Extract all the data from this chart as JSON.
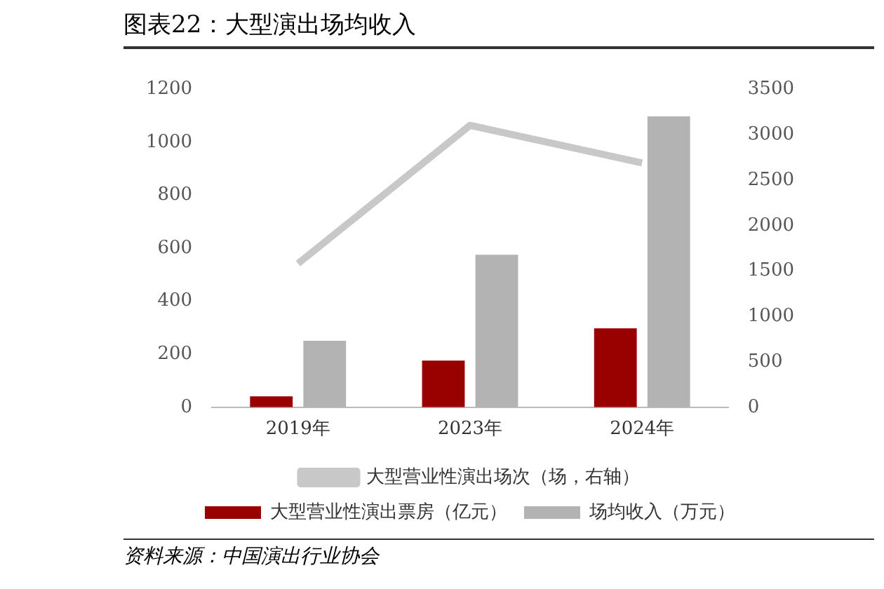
{
  "chart_data": {
    "type": "bar",
    "title": "图表22：大型演出场均收入",
    "categories": [
      "2019年",
      "2023年",
      "2024年"
    ],
    "series": [
      {
        "name": "大型营业性演出票房（亿元）",
        "color": "#990000",
        "values": [
          41,
          176,
          298
        ]
      },
      {
        "name": "场均收入（万元）",
        "color": "#b3b3b3",
        "values": [
          251,
          576,
          1098
        ]
      },
      {
        "name": "大型营业性演出场次（场，右轴）",
        "type": "line",
        "axis": "y2",
        "color": "#c8c8c8",
        "values": [
          1582,
          3105,
          2690
        ]
      }
    ],
    "ylim": [
      0,
      1200
    ],
    "yticks": [
      0,
      200,
      400,
      600,
      800,
      1000,
      1200
    ],
    "y2lim": [
      0,
      3500
    ],
    "y2ticks": [
      0,
      500,
      1000,
      1500,
      2000,
      2500,
      3000,
      3500
    ],
    "grid": false,
    "legend": "bottom",
    "marker": "none",
    "annotations": [
      "资料来源：中国演出行业协会"
    ]
  }
}
